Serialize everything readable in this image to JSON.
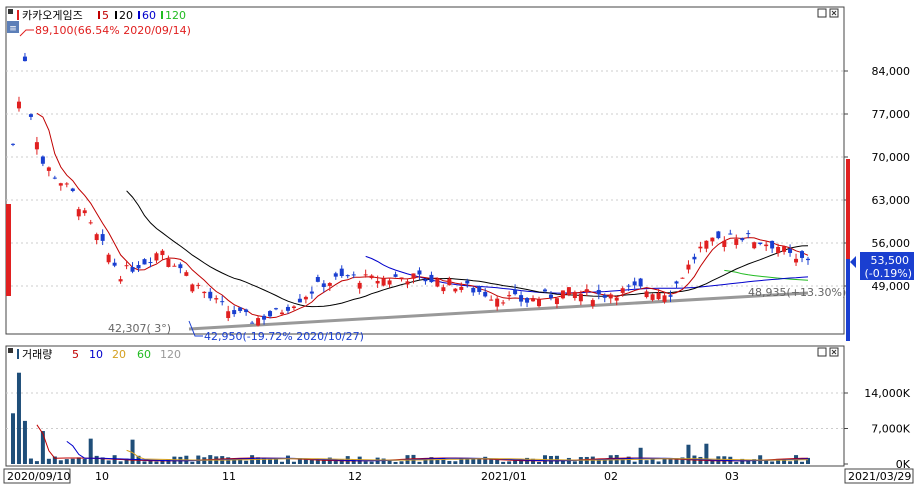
{
  "price_panel": {
    "legend": {
      "name": "카카오게임즈",
      "ma_labels": [
        "5",
        "20",
        "60",
        "120"
      ]
    },
    "max_annotation": "89,100(66.54% 2020/09/14)",
    "min_annotation": "42,950(-19.72% 2020/10/27)",
    "trend_start_label": "42,307(  3°)",
    "trend_end_label": "48,935(+13.30%)",
    "current_price": "53,500",
    "current_change": "(-0.19%)",
    "y_ticks": [
      "84,000",
      "77,000",
      "70,000",
      "63,000",
      "56,000",
      "49,000"
    ],
    "y_tick_values": [
      84000,
      77000,
      70000,
      63000,
      56000,
      49000
    ]
  },
  "volume_panel": {
    "legend": {
      "name": "거래량",
      "ma_labels": [
        "5",
        "10",
        "20",
        "60",
        "120"
      ]
    },
    "y_ticks": [
      "14,000K",
      "7,000K",
      "0K"
    ],
    "y_tick_values": [
      14000,
      7000,
      0
    ]
  },
  "x_axis": {
    "labels": [
      "2020/09/10",
      "10",
      "11",
      "12",
      "2021/01",
      "02",
      "03",
      "2021/03/29"
    ]
  },
  "colors": {
    "up": "#e02020",
    "down": "#1a3fd0",
    "ma5": "#c00000",
    "ma20": "#000000",
    "ma60": "#0000cc",
    "ma120": "#22bb22",
    "volume": "#1f4e79",
    "trend": "#999999"
  },
  "chart_data": {
    "type": "candlestick",
    "start_date": "2020/09/10",
    "end_date": "2021/03/29",
    "y_range": [
      42000,
      92000
    ],
    "price_path_key_points": [
      {
        "date": "2020/09/14",
        "high": 89100
      },
      {
        "date": "2020/10/27",
        "low": 42950
      },
      {
        "date": "2021/03/29",
        "close": 53500
      }
    ],
    "volume_range_k": [
      0,
      18000
    ]
  }
}
